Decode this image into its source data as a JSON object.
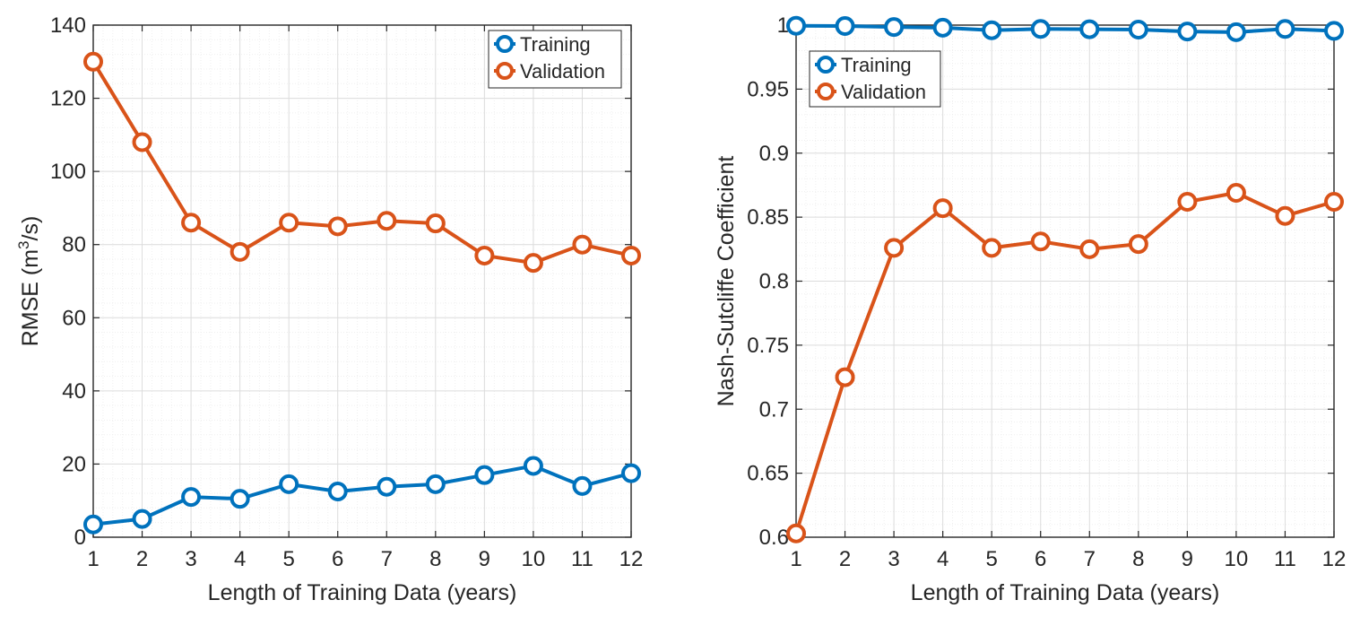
{
  "colors": {
    "training": "#0072BD",
    "validation": "#D95319",
    "axis": "#262626",
    "grid_major": "#DCDCDC",
    "grid_minor": "#EFEFEF"
  },
  "chart_data": [
    {
      "type": "line",
      "title": "",
      "xlabel": "Length of Training Data (years)",
      "ylabel": "RMSE",
      "ylabel_unit_base": "m",
      "ylabel_unit_exp": "3",
      "ylabel_unit_tail": "/s",
      "x": [
        1,
        2,
        3,
        4,
        5,
        6,
        7,
        8,
        9,
        10,
        11,
        12
      ],
      "xlim": [
        1,
        12
      ],
      "ylim": [
        0,
        140
      ],
      "xticks": [
        1,
        2,
        3,
        4,
        5,
        6,
        7,
        8,
        9,
        10,
        11,
        12
      ],
      "yticks": [
        0,
        20,
        40,
        60,
        80,
        100,
        120,
        140
      ],
      "grid": true,
      "legend_position": "top-right",
      "series": [
        {
          "name": "Training",
          "color": "#0072BD",
          "values": [
            3.5,
            5.0,
            11.0,
            10.5,
            14.5,
            12.5,
            13.8,
            14.5,
            17.0,
            19.5,
            14.0,
            17.5
          ]
        },
        {
          "name": "Validation",
          "color": "#D95319",
          "values": [
            130.0,
            108.0,
            86.0,
            78.0,
            86.0,
            85.0,
            86.5,
            85.8,
            77.0,
            75.0,
            80.0,
            77.0
          ]
        }
      ]
    },
    {
      "type": "line",
      "title": "",
      "xlabel": "Length of Training Data (years)",
      "ylabel": "Nash-Sutcliffe Coefficient",
      "x": [
        1,
        2,
        3,
        4,
        5,
        6,
        7,
        8,
        9,
        10,
        11,
        12
      ],
      "xlim": [
        1,
        12
      ],
      "ylim": [
        0.6,
        1.0
      ],
      "xticks": [
        1,
        2,
        3,
        4,
        5,
        6,
        7,
        8,
        9,
        10,
        11,
        12
      ],
      "yticks": [
        0.6,
        0.65,
        0.7,
        0.75,
        0.8,
        0.85,
        0.9,
        0.95,
        1.0
      ],
      "ytick_labels": [
        "0.6",
        "0.65",
        "0.7",
        "0.75",
        "0.8",
        "0.85",
        "0.9",
        "0.95",
        "1"
      ],
      "grid": true,
      "legend_position": "top-left",
      "series": [
        {
          "name": "Training",
          "color": "#0072BD",
          "values": [
            0.9995,
            0.9993,
            0.9985,
            0.998,
            0.996,
            0.997,
            0.9968,
            0.9965,
            0.995,
            0.9945,
            0.997,
            0.9955
          ]
        },
        {
          "name": "Validation",
          "color": "#D95319",
          "values": [
            0.603,
            0.725,
            0.826,
            0.857,
            0.826,
            0.831,
            0.825,
            0.829,
            0.862,
            0.869,
            0.851,
            0.862
          ]
        }
      ]
    }
  ]
}
